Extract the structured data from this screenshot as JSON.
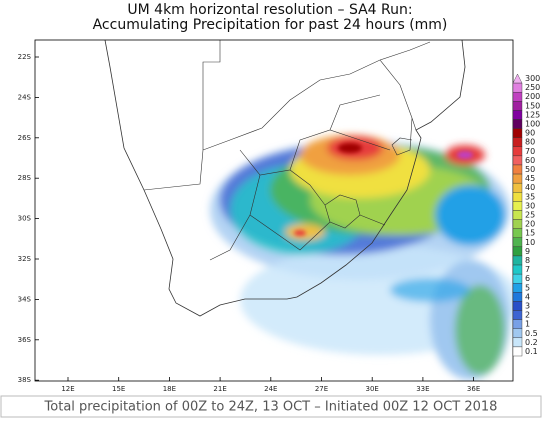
{
  "title": {
    "line1": "UM 4km horizontal resolution – SA4 Run:",
    "line2": "Accumulating Precipitation for past 24 hours (mm)"
  },
  "map": {
    "latitude_labels": [
      "22S",
      "24S",
      "26S",
      "28S",
      "30S",
      "32S",
      "34S",
      "36S",
      "38S"
    ],
    "longitude_labels": [
      "12E",
      "15E",
      "18E",
      "21E",
      "24E",
      "27E",
      "30E",
      "33E",
      "36E"
    ]
  },
  "colorbar": {
    "labels": [
      "300",
      "250",
      "200",
      "150",
      "125",
      "100",
      "90",
      "80",
      "70",
      "60",
      "50",
      "45",
      "40",
      "35",
      "30",
      "25",
      "20",
      "15",
      "10",
      "9",
      "8",
      "7",
      "6",
      "5",
      "4",
      "3",
      "2",
      "1",
      "0.5",
      "0.2",
      "0.1"
    ],
    "colors": [
      "#f0b0f0",
      "#e080e0",
      "#c040c0",
      "#a020a0",
      "#8000a0",
      "#600060",
      "#a00000",
      "#c81e1e",
      "#e63c3c",
      "#f06060",
      "#f08040",
      "#f0a040",
      "#f0c040",
      "#f0e040",
      "#e6f050",
      "#c8e650",
      "#a0d250",
      "#78c850",
      "#50b450",
      "#30a040",
      "#20b4a0",
      "#20c8c8",
      "#40d2e6",
      "#20a0e6",
      "#1e78dc",
      "#2850c8",
      "#3c64d2",
      "#78a0e6",
      "#a0c8f0",
      "#c8e6fa",
      "#ffffff"
    ]
  },
  "footer": "Total precipitation of 00Z to 24Z, 13 OCT – Initiated 00Z 12 OCT 2018"
}
